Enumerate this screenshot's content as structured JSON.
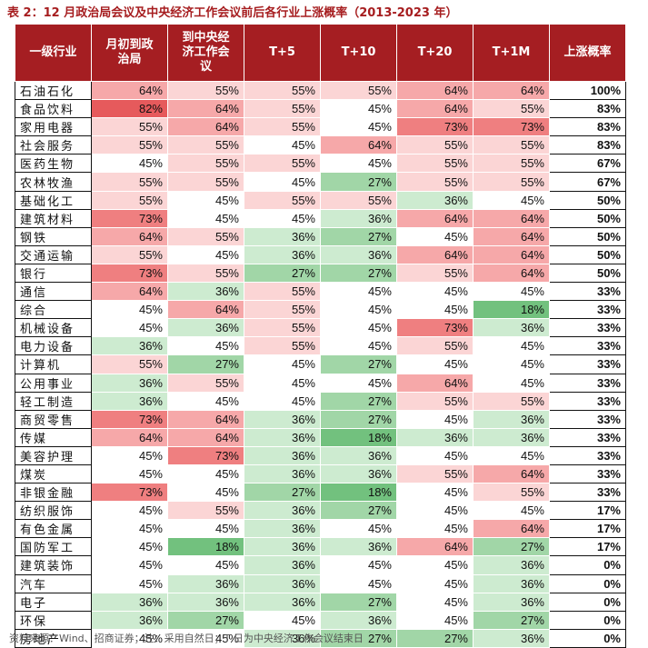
{
  "title": "表 2：12 月政治局会议及中央经济工作会议前后各行业上涨概率（2013-2023 年）",
  "headers": [
    "一级行业",
    "月初到政\n治局",
    "到中央经\n济工作会\n议",
    "T+5",
    "T+10",
    "T+20",
    "T+1M",
    "上涨概率"
  ],
  "rows": [
    {
      "name": "石油石化",
      "v": [
        "64%",
        "55%",
        "55%",
        "55%",
        "64%",
        "64%"
      ],
      "p": "100%"
    },
    {
      "name": "食品饮料",
      "v": [
        "82%",
        "64%",
        "55%",
        "45%",
        "64%",
        "55%"
      ],
      "p": "83%"
    },
    {
      "name": "家用电器",
      "v": [
        "55%",
        "64%",
        "55%",
        "45%",
        "73%",
        "73%"
      ],
      "p": "83%"
    },
    {
      "name": "社会服务",
      "v": [
        "55%",
        "55%",
        "45%",
        "64%",
        "55%",
        "55%"
      ],
      "p": "83%"
    },
    {
      "name": "医药生物",
      "v": [
        "45%",
        "55%",
        "55%",
        "45%",
        "55%",
        "55%"
      ],
      "p": "67%"
    },
    {
      "name": "农林牧渔",
      "v": [
        "55%",
        "55%",
        "45%",
        "27%",
        "55%",
        "55%"
      ],
      "p": "67%"
    },
    {
      "name": "基础化工",
      "v": [
        "55%",
        "45%",
        "55%",
        "55%",
        "36%",
        "45%"
      ],
      "p": "50%"
    },
    {
      "name": "建筑材料",
      "v": [
        "73%",
        "45%",
        "45%",
        "36%",
        "64%",
        "64%"
      ],
      "p": "50%"
    },
    {
      "name": "钢铁",
      "v": [
        "64%",
        "55%",
        "36%",
        "27%",
        "45%",
        "64%"
      ],
      "p": "50%"
    },
    {
      "name": "交通运输",
      "v": [
        "55%",
        "45%",
        "36%",
        "36%",
        "64%",
        "64%"
      ],
      "p": "50%"
    },
    {
      "name": "银行",
      "v": [
        "73%",
        "55%",
        "27%",
        "27%",
        "55%",
        "64%"
      ],
      "p": "50%"
    },
    {
      "name": "通信",
      "v": [
        "64%",
        "36%",
        "55%",
        "45%",
        "45%",
        "45%"
      ],
      "p": "33%"
    },
    {
      "name": "综合",
      "v": [
        "45%",
        "64%",
        "55%",
        "45%",
        "45%",
        "18%"
      ],
      "p": "33%"
    },
    {
      "name": "机械设备",
      "v": [
        "45%",
        "36%",
        "55%",
        "45%",
        "73%",
        "36%"
      ],
      "p": "33%"
    },
    {
      "name": "电力设备",
      "v": [
        "36%",
        "45%",
        "55%",
        "45%",
        "55%",
        "45%"
      ],
      "p": "33%"
    },
    {
      "name": "计算机",
      "v": [
        "55%",
        "27%",
        "45%",
        "27%",
        "45%",
        "45%"
      ],
      "p": "33%"
    },
    {
      "name": "公用事业",
      "v": [
        "36%",
        "55%",
        "45%",
        "45%",
        "64%",
        "45%"
      ],
      "p": "33%"
    },
    {
      "name": "轻工制造",
      "v": [
        "36%",
        "45%",
        "45%",
        "27%",
        "55%",
        "55%"
      ],
      "p": "33%"
    },
    {
      "name": "商贸零售",
      "v": [
        "73%",
        "64%",
        "36%",
        "27%",
        "45%",
        "36%"
      ],
      "p": "33%"
    },
    {
      "name": "传媒",
      "v": [
        "64%",
        "64%",
        "36%",
        "18%",
        "36%",
        "36%"
      ],
      "p": "33%"
    },
    {
      "name": "美容护理",
      "v": [
        "45%",
        "73%",
        "36%",
        "36%",
        "45%",
        "45%"
      ],
      "p": "33%"
    },
    {
      "name": "煤炭",
      "v": [
        "45%",
        "45%",
        "36%",
        "36%",
        "55%",
        "64%"
      ],
      "p": "33%"
    },
    {
      "name": "非银金融",
      "v": [
        "73%",
        "45%",
        "27%",
        "18%",
        "45%",
        "55%"
      ],
      "p": "33%"
    },
    {
      "name": "纺织服饰",
      "v": [
        "45%",
        "55%",
        "36%",
        "27%",
        "45%",
        "45%"
      ],
      "p": "17%"
    },
    {
      "name": "有色金属",
      "v": [
        "45%",
        "45%",
        "36%",
        "45%",
        "45%",
        "64%"
      ],
      "p": "17%"
    },
    {
      "name": "国防军工",
      "v": [
        "45%",
        "18%",
        "36%",
        "36%",
        "64%",
        "27%"
      ],
      "p": "17%"
    },
    {
      "name": "建筑装饰",
      "v": [
        "45%",
        "45%",
        "36%",
        "45%",
        "45%",
        "36%"
      ],
      "p": "0%"
    },
    {
      "name": "汽车",
      "v": [
        "45%",
        "36%",
        "36%",
        "45%",
        "45%",
        "36%"
      ],
      "p": "0%"
    },
    {
      "name": "电子",
      "v": [
        "36%",
        "36%",
        "36%",
        "27%",
        "45%",
        "36%"
      ],
      "p": "0%"
    },
    {
      "name": "环保",
      "v": [
        "36%",
        "27%",
        "45%",
        "36%",
        "45%",
        "27%"
      ],
      "p": "0%"
    },
    {
      "name": "房地产",
      "v": [
        "45%",
        "45%",
        "36%",
        "27%",
        "27%",
        "36%"
      ],
      "p": "0%"
    }
  ],
  "source": "资料来源：Wind、招商证券；注：采用自然日；T 日为中央经济工作会议结束日",
  "colors": {
    "header_bg": "#a51e22",
    "title_color": "#a61d1f",
    "v18": "#72c17e",
    "v27": "#a1d6a7",
    "v36": "#cdebd0",
    "v45": "#ffffff",
    "v55": "#fbd5d5",
    "v64": "#f6a8a9",
    "v73": "#ef7f80",
    "v82": "#e65a5c",
    "v100": "#e65a5c"
  }
}
